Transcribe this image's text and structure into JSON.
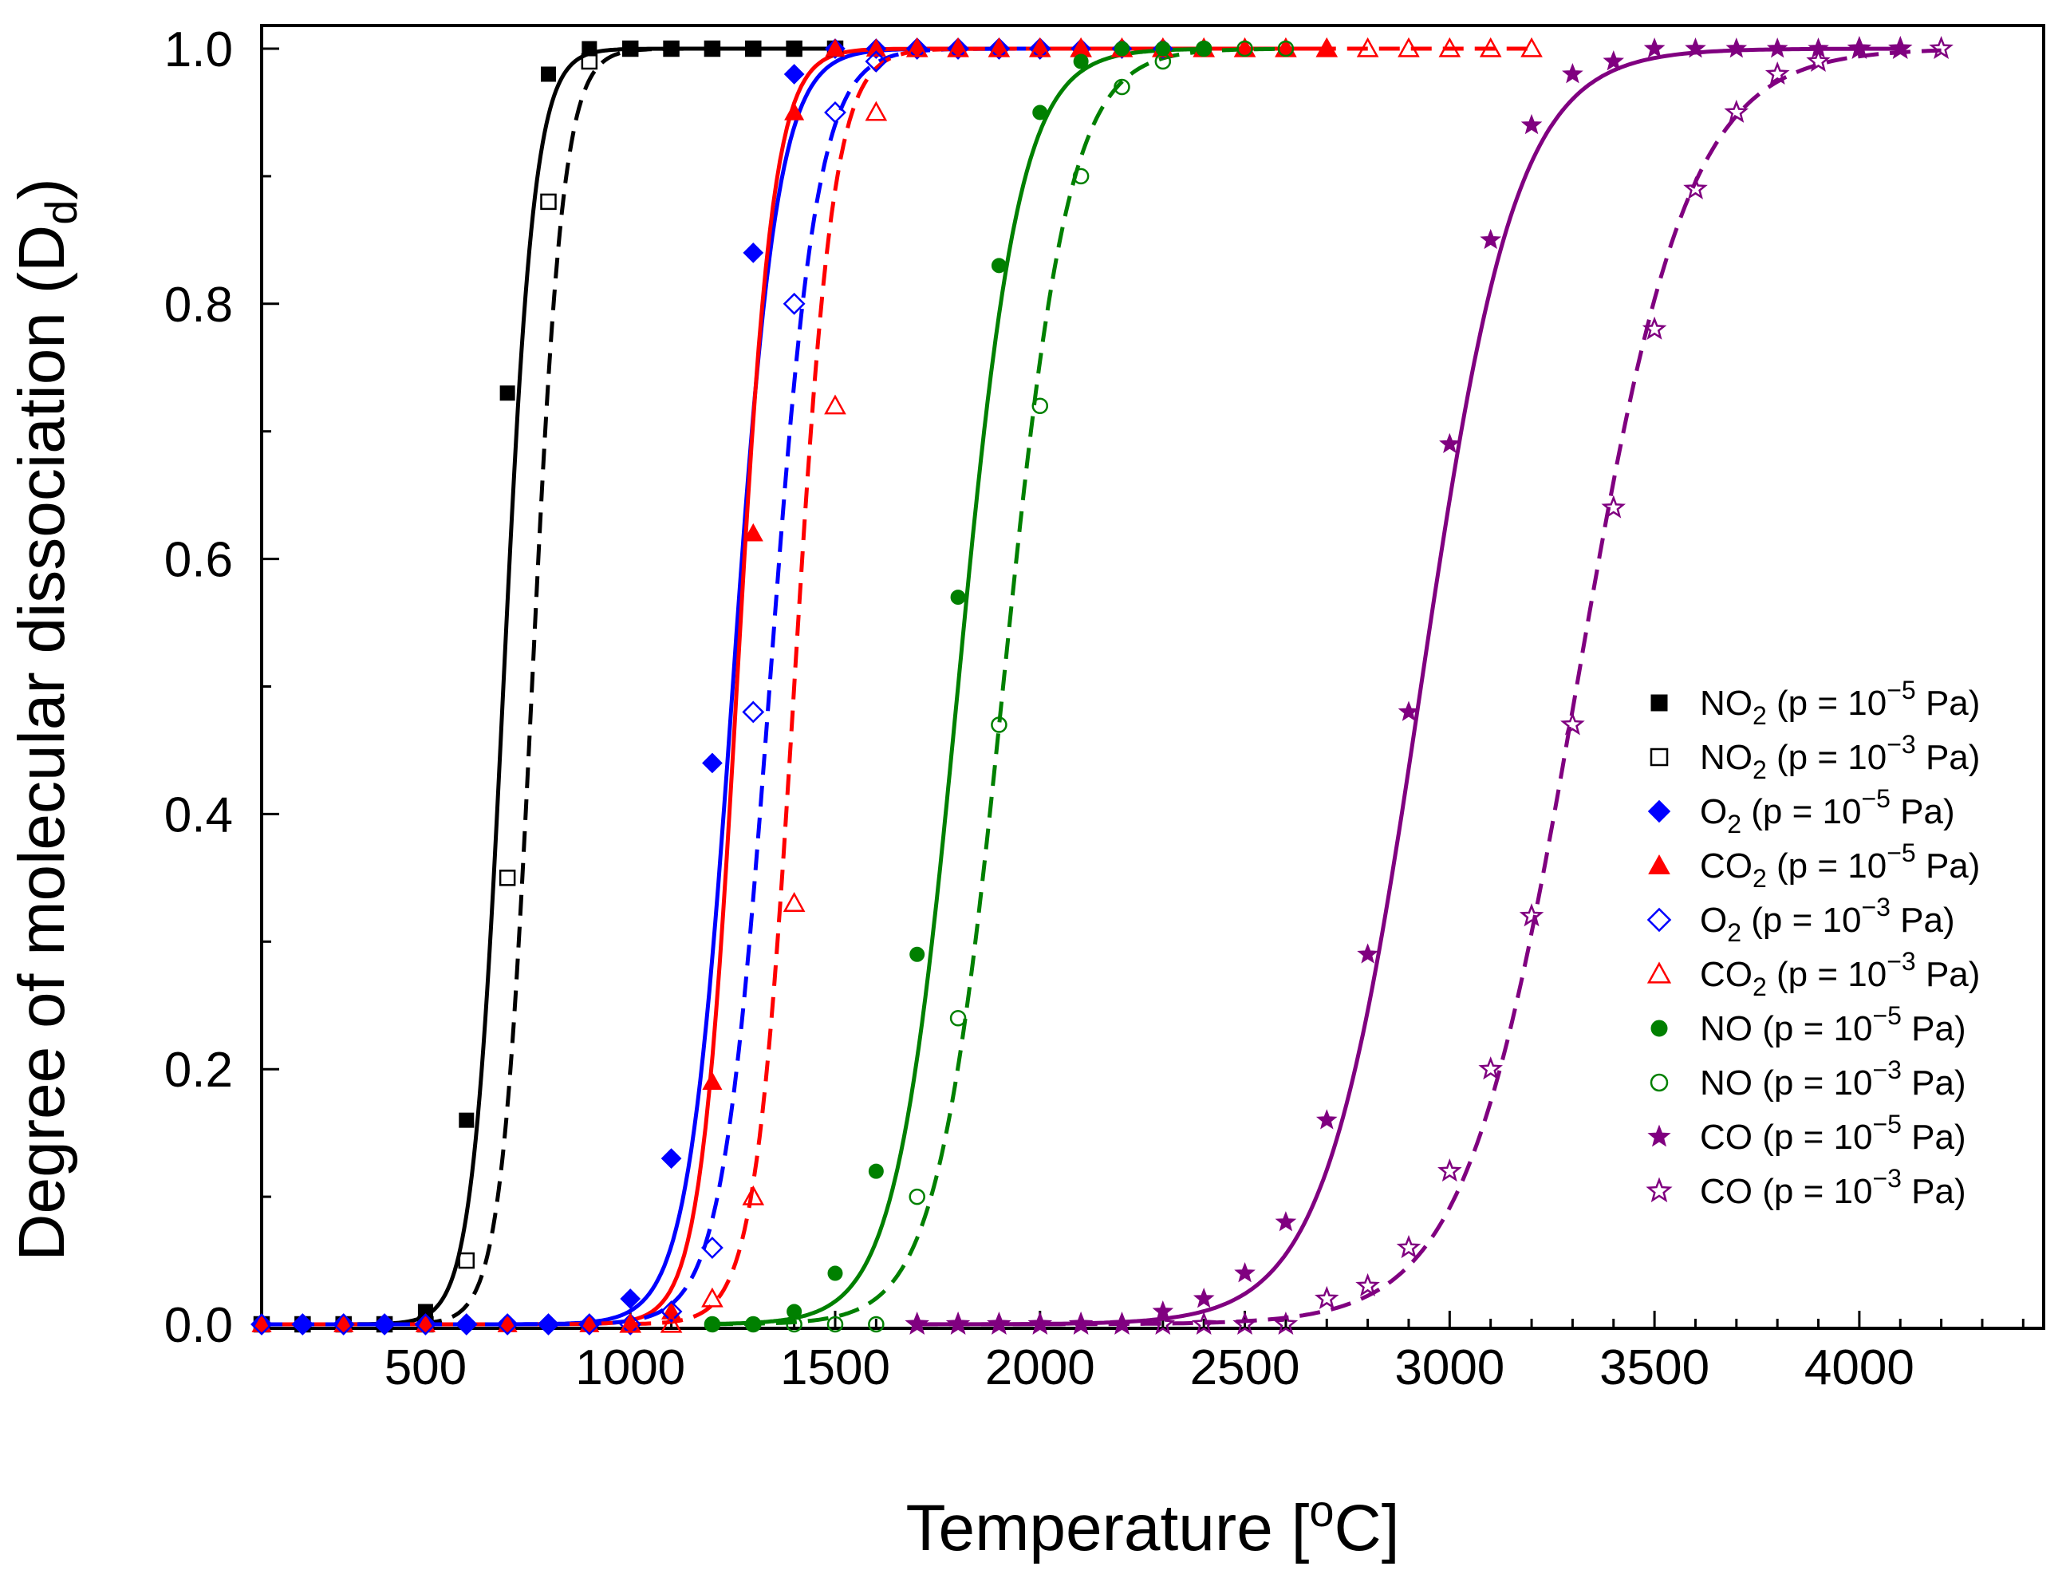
{
  "chart_data": {
    "type": "scatter",
    "title": "",
    "xlabel": "Temperature [°C]",
    "ylabel": "Degree of molecular dissociation (Dd)",
    "xlim": [
      100,
      4450
    ],
    "ylim": [
      0.0,
      1.0
    ],
    "x_ticks": [
      500,
      1000,
      1500,
      2000,
      2500,
      3000,
      3500,
      4000
    ],
    "x_tick_labels": [
      "500",
      "1000",
      "1500",
      "2000",
      "2500",
      "3000",
      "3500",
      "4000"
    ],
    "y_ticks": [
      0.0,
      0.2,
      0.4,
      0.6,
      0.8,
      1.0
    ],
    "y_tick_labels": [
      "0.0",
      "0.2",
      "0.4",
      "0.6",
      "0.8",
      "1.0"
    ],
    "grid": false,
    "legend_position": "right",
    "series": [
      {
        "name": "NO2 (p = 10-5 Pa)",
        "label": {
          "sp": "NO",
          "sub": "2",
          "pre": " (p = 10",
          "exp": "−5",
          "post": " Pa)"
        },
        "color": "#000000",
        "marker": "square",
        "filled": true,
        "line": "solid",
        "T0": 690,
        "w": 38,
        "x": [
          100,
          200,
          300,
          400,
          500,
          600,
          700,
          800,
          900,
          1000,
          1100,
          1200,
          1300,
          1400,
          1500
        ],
        "y": [
          0,
          0,
          0,
          0,
          0.01,
          0.16,
          0.73,
          0.98,
          1.0,
          1.0,
          1.0,
          1.0,
          1.0,
          1.0,
          1.0
        ]
      },
      {
        "name": "NO2 (p = 10-3 Pa)",
        "label": {
          "sp": "NO",
          "sub": "2",
          "pre": " (p = 10",
          "exp": "−3",
          "post": " Pa)"
        },
        "color": "#000000",
        "marker": "square",
        "filled": false,
        "line": "dashed",
        "T0": 760,
        "w": 38,
        "x": [
          100,
          200,
          300,
          400,
          500,
          600,
          700,
          800,
          900,
          1000,
          1100,
          1200,
          1300,
          1400,
          1500
        ],
        "y": [
          0,
          0,
          0,
          0,
          0,
          0.05,
          0.35,
          0.88,
          0.99,
          1.0,
          1.0,
          1.0,
          1.0,
          1.0,
          1.0
        ]
      },
      {
        "name": "O2 (p = 10-5 Pa)",
        "label": {
          "sp": "O",
          "sub": "2",
          "pre": "   (p = 10",
          "exp": "−5",
          "post": " Pa)"
        },
        "color": "#0000ff",
        "marker": "diamond",
        "filled": true,
        "line": "solid",
        "T0": 1250,
        "w": 55,
        "x": [
          100,
          200,
          300,
          400,
          500,
          600,
          700,
          800,
          900,
          1000,
          1100,
          1200,
          1300,
          1400,
          1500,
          1600,
          1700,
          1800,
          1900,
          2000,
          2100,
          2200,
          2300
        ],
        "y": [
          0,
          0,
          0,
          0,
          0,
          0,
          0,
          0,
          0,
          0.02,
          0.13,
          0.44,
          0.84,
          0.98,
          1.0,
          1.0,
          1.0,
          1.0,
          1.0,
          1.0,
          1.0,
          1.0,
          1.0
        ]
      },
      {
        "name": "CO2 (p = 10-5 Pa)",
        "label": {
          "sp": "CO",
          "sub": "2",
          "pre": " (p = 10",
          "exp": "−5",
          "post": " Pa)"
        },
        "color": "#ff0000",
        "marker": "triangle",
        "filled": true,
        "line": "solid",
        "T0": 1260,
        "w": 45,
        "x": [
          100,
          300,
          500,
          700,
          900,
          1000,
          1100,
          1200,
          1300,
          1400,
          1500,
          1600,
          1700,
          1800,
          1900,
          2000,
          2100,
          2200,
          2300,
          2400,
          2500,
          2600,
          2700
        ],
        "y": [
          0,
          0,
          0,
          0,
          0,
          0,
          0.01,
          0.19,
          0.62,
          0.95,
          1.0,
          1.0,
          1.0,
          1.0,
          1.0,
          1.0,
          1.0,
          1.0,
          1.0,
          1.0,
          1.0,
          1.0,
          1.0
        ]
      },
      {
        "name": "O2 (p = 10-3 Pa)",
        "label": {
          "sp": "O",
          "sub": "2",
          "pre": "    (p = 10",
          "exp": "−3",
          "post": " Pa)"
        },
        "color": "#0000ff",
        "marker": "diamond",
        "filled": false,
        "line": "dashed",
        "T0": 1340,
        "w": 58,
        "x": [
          100,
          200,
          300,
          400,
          500,
          600,
          700,
          800,
          900,
          1000,
          1100,
          1200,
          1300,
          1400,
          1500,
          1600,
          1700,
          1800,
          1900,
          2000
        ],
        "y": [
          0,
          0,
          0,
          0,
          0,
          0,
          0,
          0,
          0,
          0,
          0.01,
          0.06,
          0.48,
          0.8,
          0.95,
          0.99,
          1.0,
          1.0,
          1.0,
          1.0
        ]
      },
      {
        "name": "CO2 (p = 10-3 Pa)",
        "label": {
          "sp": "CO",
          "sub": "2",
          "pre": "  (p = 10",
          "exp": "−3",
          "post": " Pa)"
        },
        "color": "#ff0000",
        "marker": "triangle",
        "filled": false,
        "line": "dashed",
        "T0": 1400,
        "w": 48,
        "x": [
          1000,
          1100,
          1200,
          1300,
          1400,
          1500,
          1600,
          1700,
          1800,
          1900,
          2000,
          2100,
          2200,
          2300,
          2400,
          2500,
          2600,
          2700,
          2800,
          2900,
          3000,
          3100,
          3200
        ],
        "y": [
          0,
          0,
          0.02,
          0.1,
          0.33,
          0.72,
          0.95,
          1.0,
          1.0,
          1.0,
          1.0,
          1.0,
          1.0,
          1.0,
          1.0,
          1.0,
          1.0,
          1.0,
          1.0,
          1.0,
          1.0,
          1.0,
          1.0
        ]
      },
      {
        "name": "NO (p = 10-5 Pa)",
        "label": {
          "sp": "NO",
          "sub": "",
          "pre": " (p = 10",
          "exp": "−5",
          "post": " Pa)"
        },
        "color": "#008000",
        "marker": "circle",
        "filled": true,
        "line": "solid",
        "T0": 1800,
        "w": 75,
        "x": [
          1200,
          1300,
          1400,
          1500,
          1600,
          1700,
          1800,
          1900,
          2000,
          2100,
          2200,
          2300,
          2400
        ],
        "y": [
          0,
          0,
          0.01,
          0.04,
          0.12,
          0.29,
          0.57,
          0.83,
          0.95,
          0.99,
          1.0,
          1.0,
          1.0
        ]
      },
      {
        "name": "NO (p = 10-3 Pa)",
        "label": {
          "sp": "NO",
          "sub": "",
          "pre": " (p = 10",
          "exp": "−3",
          "post": " Pa)"
        },
        "color": "#008000",
        "marker": "circle",
        "filled": false,
        "line": "dashed",
        "T0": 1910,
        "w": 80,
        "x": [
          1200,
          1300,
          1400,
          1500,
          1600,
          1700,
          1800,
          1900,
          2000,
          2100,
          2200,
          2300,
          2400,
          2500,
          2600
        ],
        "y": [
          0,
          0,
          0,
          0,
          0,
          0.1,
          0.24,
          0.47,
          0.72,
          0.9,
          0.97,
          0.99,
          1.0,
          1.0,
          1.0
        ]
      },
      {
        "name": "CO (p = 10-5 Pa)",
        "label": {
          "sp": "CO",
          "sub": "",
          "pre": " (p = 10",
          "exp": "−5",
          "post": " Pa)"
        },
        "color": "#800080",
        "marker": "star",
        "filled": true,
        "line": "solid",
        "T0": 2930,
        "w": 116,
        "x": [
          1700,
          1800,
          1900,
          2000,
          2100,
          2200,
          2300,
          2400,
          2500,
          2600,
          2700,
          2800,
          2900,
          3000,
          3100,
          3200,
          3300,
          3400,
          3500,
          3600,
          3700,
          3800,
          3900,
          4000,
          4100
        ],
        "y": [
          0,
          0,
          0,
          0,
          0,
          0,
          0.01,
          0.02,
          0.04,
          0.08,
          0.16,
          0.29,
          0.48,
          0.69,
          0.85,
          0.94,
          0.98,
          0.99,
          1.0,
          1.0,
          1.0,
          1.0,
          1.0,
          1.0,
          1.0
        ]
      },
      {
        "name": "CO (p = 10-3 Pa)",
        "label": {
          "sp": "CO",
          "sub": "",
          "pre": " (p = 10",
          "exp": "−3",
          "post": " Pa)"
        },
        "color": "#800080",
        "marker": "star",
        "filled": false,
        "line": "dashed",
        "T0": 3310,
        "w": 135,
        "x": [
          1700,
          1800,
          1900,
          2000,
          2100,
          2200,
          2300,
          2400,
          2500,
          2600,
          2700,
          2800,
          2900,
          3000,
          3100,
          3200,
          3300,
          3400,
          3500,
          3600,
          3700,
          3800,
          3900,
          4000,
          4100,
          4200
        ],
        "y": [
          0,
          0,
          0,
          0,
          0,
          0,
          0,
          0,
          0,
          0,
          0.02,
          0.03,
          0.06,
          0.12,
          0.2,
          0.32,
          0.47,
          0.64,
          0.78,
          0.89,
          0.95,
          0.98,
          0.99,
          1.0,
          1.0,
          1.0
        ]
      }
    ]
  }
}
